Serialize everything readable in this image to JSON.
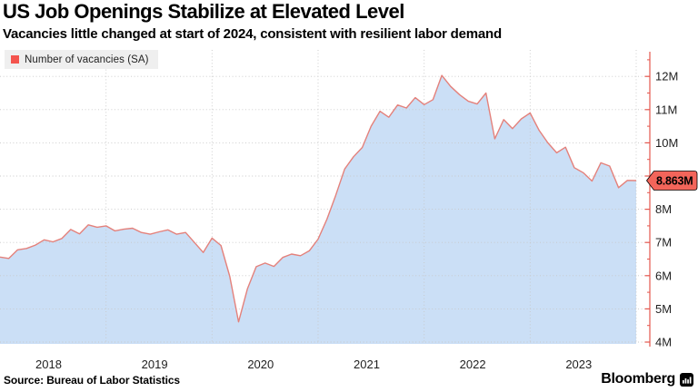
{
  "header": {
    "title": "US Job Openings Stabilize at Elevated Level",
    "subtitle": "Vacancies little changed at start of 2024, consistent with resilient labor demand"
  },
  "legend": {
    "label": "Number of vacancies (SA)",
    "swatch_color": "#f4544e"
  },
  "footer": {
    "source": "Source: Bureau of Labor Statistics",
    "brand": "Bloomberg"
  },
  "chart_data": {
    "type": "area",
    "title": "US Job Openings Stabilize at Elevated Level",
    "series_name": "Number of vacancies (SA)",
    "unit": "millions of job openings, seasonally adjusted",
    "x": [
      "2018-01",
      "2018-02",
      "2018-03",
      "2018-04",
      "2018-05",
      "2018-06",
      "2018-07",
      "2018-08",
      "2018-09",
      "2018-10",
      "2018-11",
      "2018-12",
      "2019-01",
      "2019-02",
      "2019-03",
      "2019-04",
      "2019-05",
      "2019-06",
      "2019-07",
      "2019-08",
      "2019-09",
      "2019-10",
      "2019-11",
      "2019-12",
      "2020-01",
      "2020-02",
      "2020-03",
      "2020-04",
      "2020-05",
      "2020-06",
      "2020-07",
      "2020-08",
      "2020-09",
      "2020-10",
      "2020-11",
      "2020-12",
      "2021-01",
      "2021-02",
      "2021-03",
      "2021-04",
      "2021-05",
      "2021-06",
      "2021-07",
      "2021-08",
      "2021-09",
      "2021-10",
      "2021-11",
      "2021-12",
      "2022-01",
      "2022-02",
      "2022-03",
      "2022-04",
      "2022-05",
      "2022-06",
      "2022-07",
      "2022-08",
      "2022-09",
      "2022-10",
      "2022-11",
      "2022-12",
      "2023-01",
      "2023-02",
      "2023-03",
      "2023-04",
      "2023-05",
      "2023-06",
      "2023-07",
      "2023-08",
      "2023-09",
      "2023-10",
      "2023-11",
      "2023-12",
      "2024-01"
    ],
    "values": [
      6.56,
      6.52,
      6.78,
      6.82,
      6.92,
      7.08,
      7.02,
      7.12,
      7.39,
      7.26,
      7.53,
      7.46,
      7.5,
      7.35,
      7.4,
      7.43,
      7.3,
      7.25,
      7.32,
      7.38,
      7.25,
      7.3,
      7.0,
      6.7,
      7.13,
      6.91,
      5.98,
      4.61,
      5.6,
      6.27,
      6.38,
      6.28,
      6.55,
      6.65,
      6.6,
      6.75,
      7.1,
      7.7,
      8.42,
      9.21,
      9.58,
      9.86,
      10.5,
      10.95,
      10.77,
      11.14,
      11.05,
      11.36,
      11.15,
      11.3,
      12.03,
      11.7,
      11.45,
      11.25,
      11.17,
      11.5,
      10.12,
      10.7,
      10.43,
      10.72,
      10.9,
      10.38,
      10.0,
      9.7,
      9.87,
      9.25,
      9.1,
      8.85,
      9.4,
      9.3,
      8.65,
      8.87,
      8.863
    ],
    "last_value": 8.863,
    "last_value_label": "8.863M",
    "y_ticks": [
      4,
      5,
      6,
      7,
      8,
      9,
      10,
      11,
      12
    ],
    "y_tick_labels": [
      "4M",
      "5M",
      "6M",
      "7M",
      "8M",
      "9M",
      "10M",
      "11M",
      "12M"
    ],
    "x_year_labels": [
      "2018",
      "2019",
      "2020",
      "2021",
      "2022",
      "2023"
    ],
    "ylim": [
      3.95,
      12.6
    ],
    "grid": true,
    "legend_position": "top-left",
    "axis_side": "right",
    "colors": {
      "line": "#e4817b",
      "fill": "#cbdff6",
      "axis": "#e4564d",
      "tag_bg": "#f3655a",
      "tag_text": "#000000",
      "grid": "#c8c8c8",
      "tick_text": "#1f1f1f"
    }
  }
}
